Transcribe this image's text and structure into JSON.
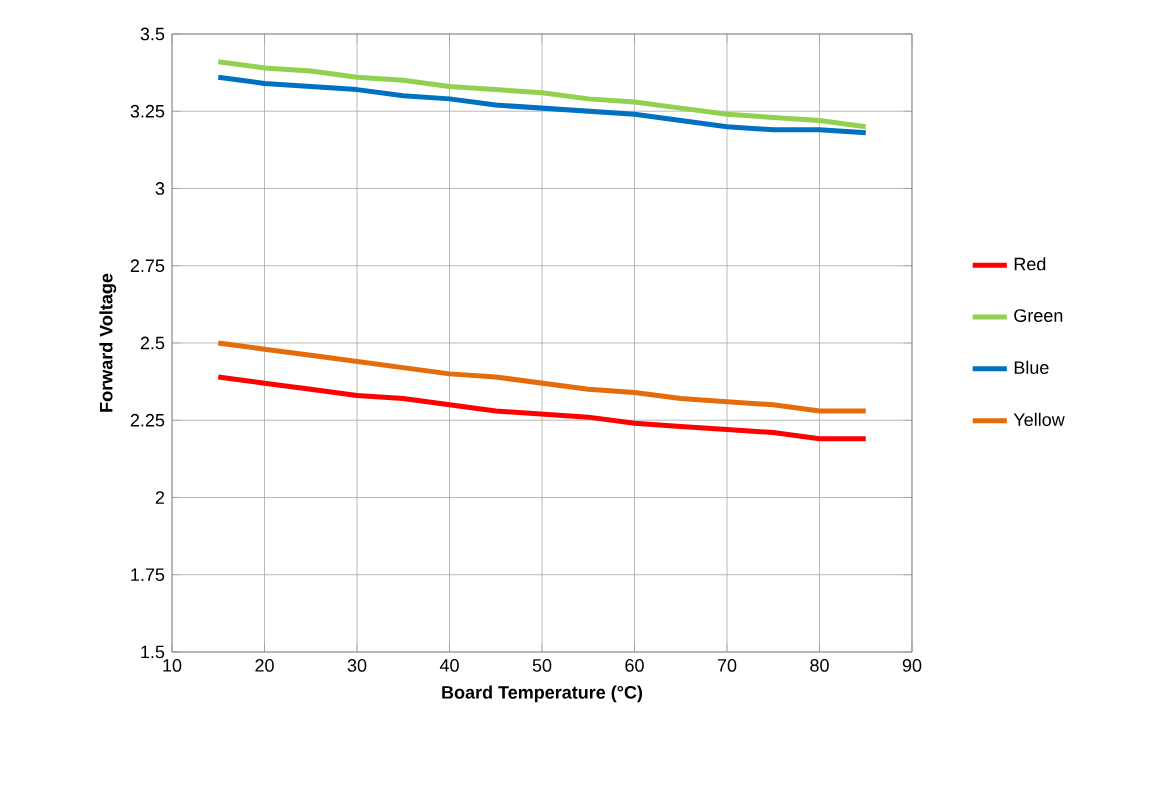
{
  "chart_data": {
    "type": "line",
    "xlabel": "Board Temperature (°C)",
    "ylabel": "Forward Voltage",
    "x": [
      15,
      20,
      25,
      30,
      35,
      40,
      45,
      50,
      55,
      60,
      65,
      70,
      75,
      80,
      85
    ],
    "series": [
      {
        "name": "Red",
        "color": "#ff0000",
        "values": [
          2.39,
          2.37,
          2.35,
          2.33,
          2.32,
          2.3,
          2.28,
          2.27,
          2.26,
          2.24,
          2.23,
          2.22,
          2.21,
          2.19,
          2.19
        ]
      },
      {
        "name": "Green",
        "color": "#92d050",
        "values": [
          3.41,
          3.39,
          3.38,
          3.36,
          3.35,
          3.33,
          3.32,
          3.31,
          3.29,
          3.28,
          3.26,
          3.24,
          3.23,
          3.22,
          3.2
        ]
      },
      {
        "name": "Blue",
        "color": "#0070c0",
        "values": [
          3.36,
          3.34,
          3.33,
          3.32,
          3.3,
          3.29,
          3.27,
          3.26,
          3.25,
          3.24,
          3.22,
          3.2,
          3.19,
          3.19,
          3.18
        ]
      },
      {
        "name": "Yellow",
        "color": "#e46c0a",
        "values": [
          2.5,
          2.48,
          2.46,
          2.44,
          2.42,
          2.4,
          2.39,
          2.37,
          2.35,
          2.34,
          2.32,
          2.31,
          2.3,
          2.28,
          2.28
        ]
      }
    ],
    "xlim": [
      10,
      90
    ],
    "xticks": [
      10,
      20,
      30,
      40,
      50,
      60,
      70,
      80,
      90
    ],
    "ylim": [
      1.5,
      3.5
    ],
    "yticks": [
      1.5,
      1.75,
      2,
      2.25,
      2.5,
      2.75,
      3,
      3.25,
      3.5
    ],
    "grid": true,
    "legend": "right",
    "marker": "none",
    "line_style": "solid"
  }
}
